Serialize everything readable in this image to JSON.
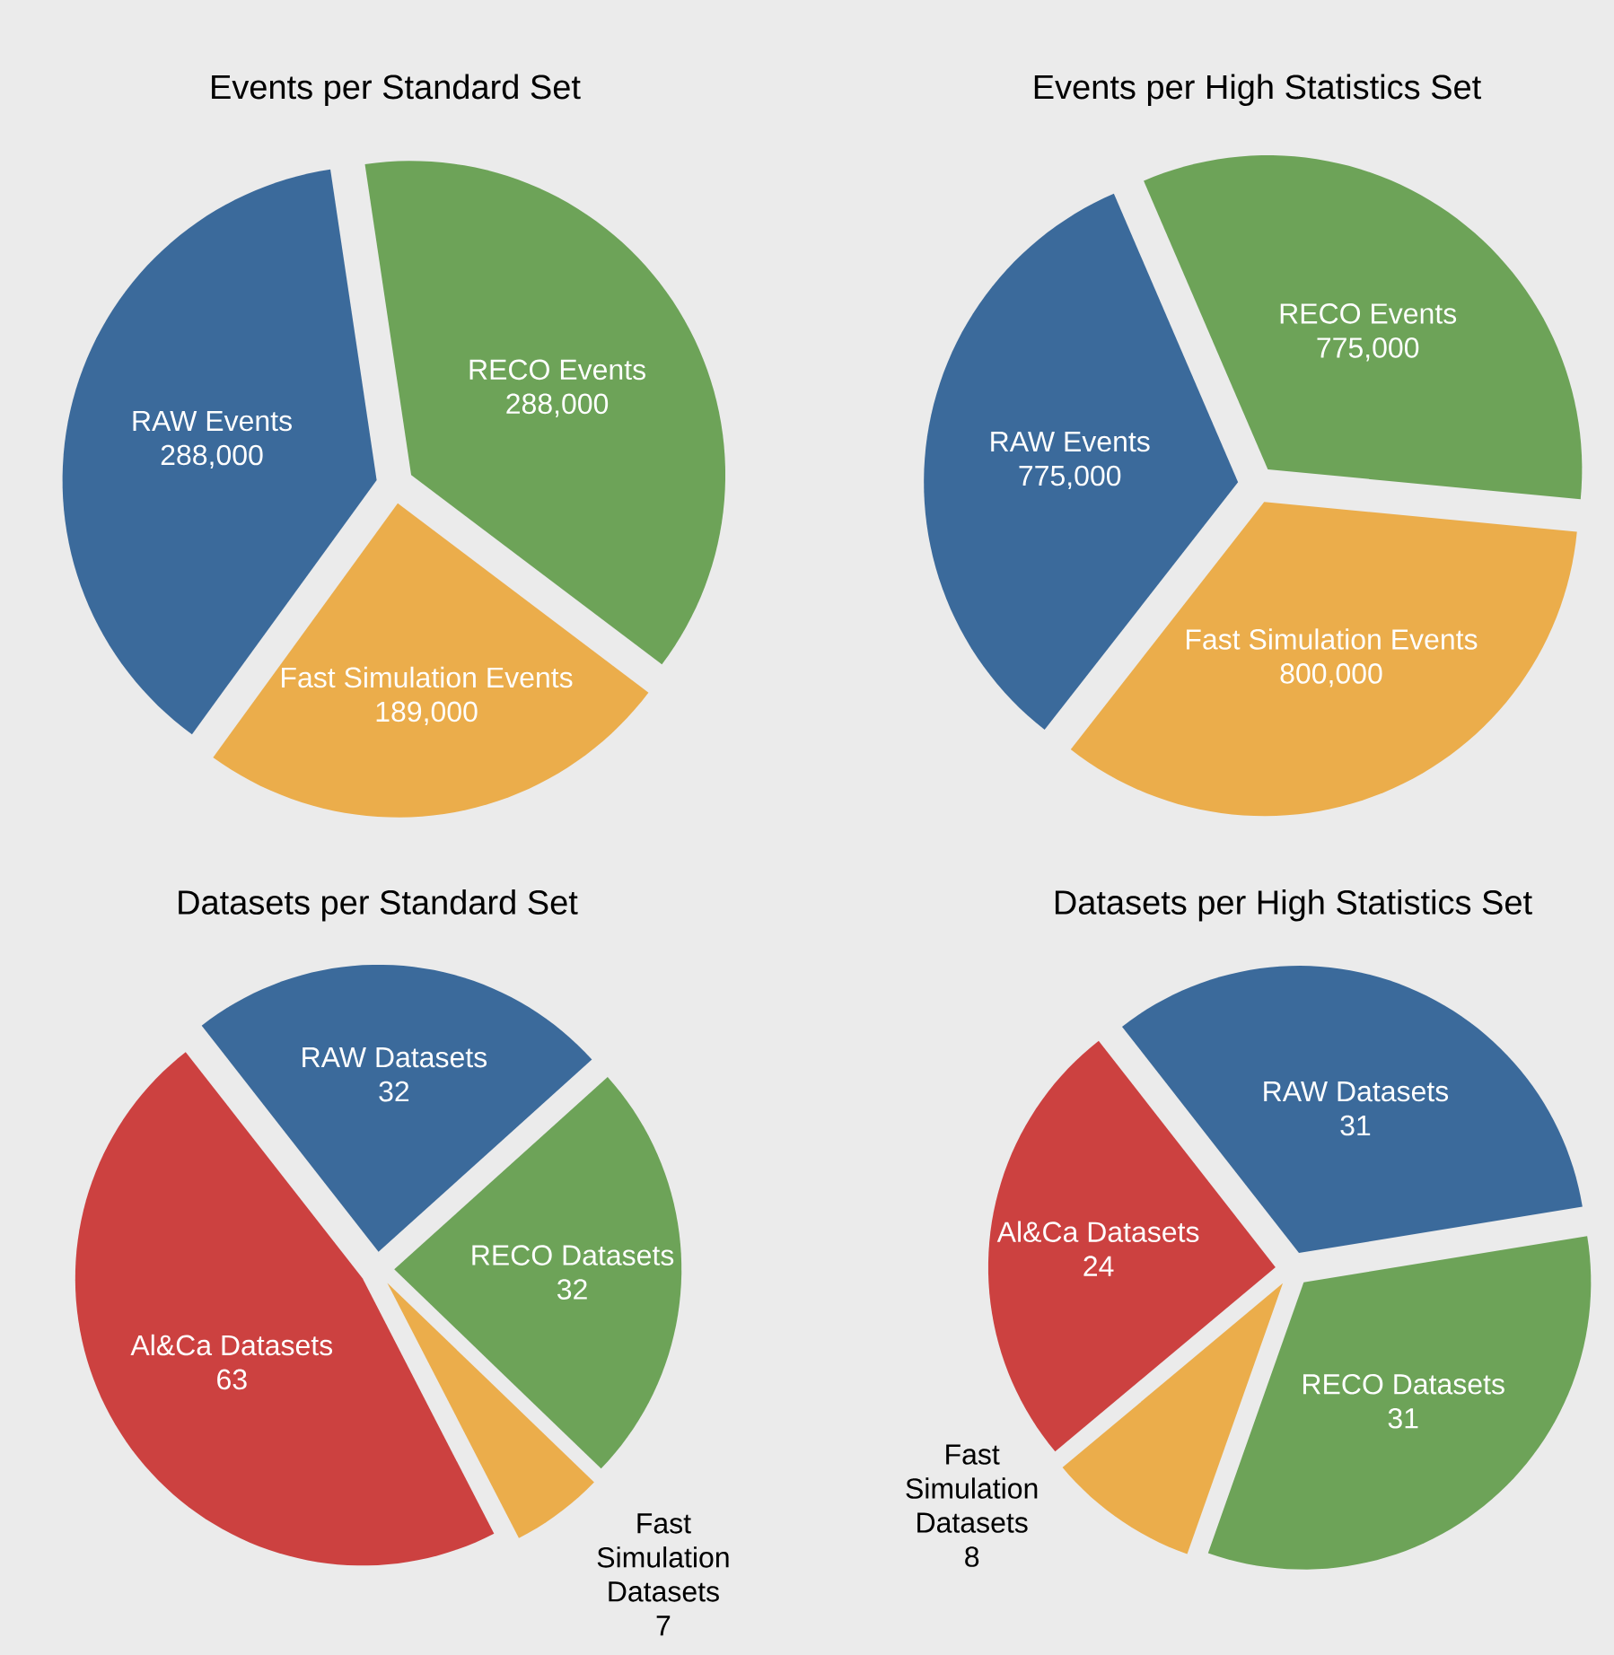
{
  "chart_data": [
    {
      "type": "pie",
      "title": "Events per Standard Set",
      "categories": [
        "RAW Events",
        "RECO Events",
        "Fast Simulation Events"
      ],
      "values": [
        288000,
        288000,
        189000
      ],
      "value_labels": [
        "288,000",
        "288,000",
        "189,000"
      ],
      "colors": [
        "#3b6a9b",
        "#6da358",
        "#ebad4b"
      ]
    },
    {
      "type": "pie",
      "title": "Events per High Statistics Set",
      "categories": [
        "RAW Events",
        "RECO Events",
        "Fast Simulation Events"
      ],
      "values": [
        775000,
        775000,
        800000
      ],
      "value_labels": [
        "775,000",
        "775,000",
        "800,000"
      ],
      "colors": [
        "#3b6a9b",
        "#6da358",
        "#ebad4b"
      ]
    },
    {
      "type": "pie",
      "title": "Datasets per Standard Set",
      "categories": [
        "RAW Datasets",
        "RECO Datasets",
        "Fast Simulation Datasets",
        "Al&Ca Datasets"
      ],
      "values": [
        32,
        32,
        7,
        63
      ],
      "value_labels": [
        "32",
        "32",
        "7",
        "63"
      ],
      "colors": [
        "#3b6a9b",
        "#6da358",
        "#ebad4b",
        "#cc4140"
      ]
    },
    {
      "type": "pie",
      "title": "Datasets per High Statistics Set",
      "categories": [
        "RAW Datasets",
        "RECO Datasets",
        "Fast Simulation Datasets",
        "Al&Ca Datasets"
      ],
      "values": [
        31,
        31,
        8,
        24
      ],
      "value_labels": [
        "31",
        "31",
        "8",
        "24"
      ],
      "colors": [
        "#3b6a9b",
        "#6da358",
        "#ebad4b",
        "#cc4140"
      ]
    }
  ]
}
